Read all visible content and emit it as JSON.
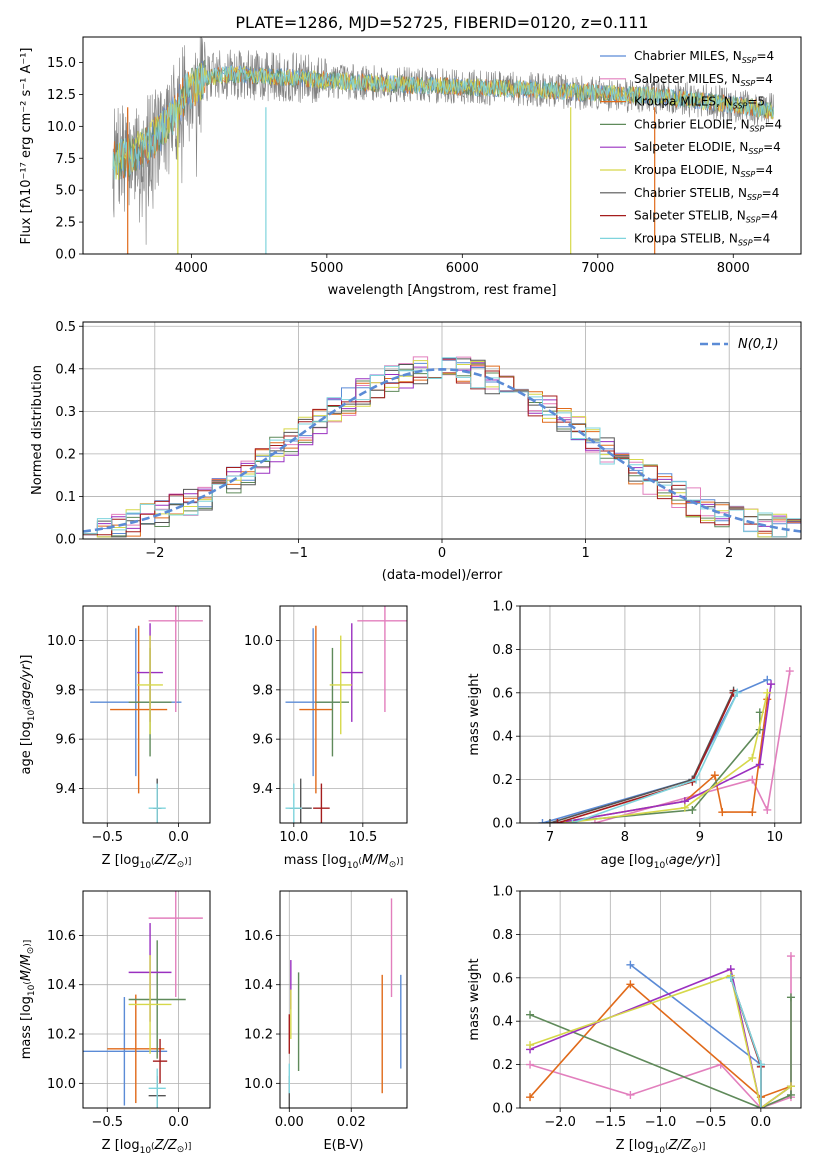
{
  "figure_title": "PLATE=1286, MJD=52725, FIBERID=0120, z=0.111",
  "colors": {
    "Chabrier MILES": "#5b8bd6",
    "Salpeter MILES": "#e27fbd",
    "Kroupa MILES": "#e06a1a",
    "Chabrier ELODIE": "#5f8a5a",
    "Salpeter ELODIE": "#9a30c0",
    "Kroupa ELODIE": "#d6d84a",
    "Chabrier STELIB": "#555555",
    "Salpeter STELIB": "#a51d1d",
    "Kroupa STELIB": "#7fd4dd",
    "gaussian": "#5b8bd6",
    "grid": "#b0b0b0",
    "data_gray": "#808080"
  },
  "chart_data": [
    {
      "id": "spectrum",
      "type": "line",
      "title": "PLATE=1286, MJD=52725, FIBERID=0120, z=0.111",
      "xlabel": "wavelength [Angstrom, rest frame]",
      "ylabel": "Flux [f_λ 10^-17 erg cm^-2 s^-1 A^-1]",
      "xlim": [
        3200,
        8500
      ],
      "ylim": [
        0,
        17
      ],
      "xticks": [
        4000,
        5000,
        6000,
        7000,
        8000
      ],
      "yticks": [
        0.0,
        2.5,
        5.0,
        7.5,
        10.0,
        12.5,
        15.0
      ],
      "ytick_labels": [
        "0.0",
        "2.5",
        "5.0",
        "7.5",
        "10.0",
        "12.5",
        "15.0"
      ],
      "grid": false,
      "legend": "right",
      "legend_entries": [
        {
          "label": "Chabrier MILES, N",
          "sub": "SSP",
          "tail": "=4",
          "key": "Chabrier MILES"
        },
        {
          "label": "Salpeter MILES, N",
          "sub": "SSP",
          "tail": "=4",
          "key": "Salpeter MILES"
        },
        {
          "label": "Kroupa MILES, N",
          "sub": "SSP",
          "tail": "=5",
          "key": "Kroupa MILES"
        },
        {
          "label": "Chabrier ELODIE, N",
          "sub": "SSP",
          "tail": "=4",
          "key": "Chabrier ELODIE"
        },
        {
          "label": "Salpeter ELODIE, N",
          "sub": "SSP",
          "tail": "=4",
          "key": "Salpeter ELODIE"
        },
        {
          "label": "Kroupa ELODIE, N",
          "sub": "SSP",
          "tail": "=4",
          "key": "Kroupa ELODIE"
        },
        {
          "label": "Chabrier STELIB, N",
          "sub": "SSP",
          "tail": "=4",
          "key": "Chabrier STELIB"
        },
        {
          "label": "Salpeter STELIB, N",
          "sub": "SSP",
          "tail": "=4",
          "key": "Salpeter STELIB"
        },
        {
          "label": "Kroupa STELIB, N",
          "sub": "SSP",
          "tail": "=4",
          "key": "Kroupa STELIB"
        }
      ],
      "continuum_x": [
        3420,
        3550,
        3700,
        3850,
        3950,
        4100,
        4300,
        4600,
        5000,
        5500,
        6000,
        6500,
        7000,
        7500,
        8000,
        8300
      ],
      "continuum_y": [
        7.3,
        7.6,
        8.8,
        10.5,
        12.5,
        13.8,
        14.1,
        13.9,
        13.6,
        13.3,
        13.1,
        12.9,
        12.6,
        12.3,
        11.7,
        11.2
      ]
    },
    {
      "id": "residuals",
      "type": "histogram",
      "xlabel": "(data-model)/error",
      "ylabel": "Normed distribution",
      "xlim": [
        -2.5,
        2.5
      ],
      "ylim": [
        0,
        0.51
      ],
      "xticks": [
        -2,
        -1,
        0,
        1,
        2
      ],
      "xtick_labels": [
        "−2",
        "−1",
        "0",
        "1",
        "2"
      ],
      "yticks": [
        0.0,
        0.1,
        0.2,
        0.3,
        0.4,
        0.5
      ],
      "ytick_labels": [
        "0.0",
        "0.1",
        "0.2",
        "0.3",
        "0.4",
        "0.5"
      ],
      "grid": true,
      "legend": "top-right",
      "gaussian_label": "N(0,1)",
      "bin_width": 0.1
    },
    {
      "id": "age_vs_Z",
      "type": "errorbar",
      "xlabel": "Z [log10(Z/Z⊙)]",
      "ylabel": "age [log10(age/yr)]",
      "xlim": [
        -0.67,
        0.22
      ],
      "ylim": [
        9.26,
        10.14
      ],
      "xticks": [
        -0.5,
        0.0
      ],
      "xtick_labels": [
        "−0.5",
        "0.0"
      ],
      "yticks": [
        9.4,
        9.6,
        9.8,
        10.0
      ],
      "ytick_labels": [
        "9.4",
        "9.6",
        "9.8",
        "10.0"
      ],
      "grid": true,
      "points": [
        {
          "key": "Chabrier MILES",
          "x": -0.3,
          "xerr": 0.32,
          "y": 9.75,
          "yerr": 0.3
        },
        {
          "key": "Salpeter MILES",
          "x": -0.02,
          "xerr": 0.19,
          "y": 10.08,
          "yerr": 0.37
        },
        {
          "key": "Kroupa MILES",
          "x": -0.28,
          "xerr": 0.2,
          "y": 9.72,
          "yerr": 0.34
        },
        {
          "key": "Chabrier ELODIE",
          "x": -0.2,
          "xerr": 0.15,
          "y": 9.75,
          "yerr": 0.22
        },
        {
          "key": "Salpeter ELODIE",
          "x": -0.2,
          "xerr": 0.09,
          "y": 9.87,
          "yerr": 0.2
        },
        {
          "key": "Kroupa ELODIE",
          "x": -0.2,
          "xerr": 0.09,
          "y": 9.82,
          "yerr": 0.2
        },
        {
          "key": "Chabrier STELIB",
          "x": -0.15,
          "xerr": 0.03,
          "y": 9.32,
          "yerr": 0.12
        },
        {
          "key": "Salpeter STELIB",
          "x": -0.15,
          "xerr": 0.02,
          "y": 9.32,
          "yerr": 0.1
        },
        {
          "key": "Kroupa STELIB",
          "x": -0.15,
          "xerr": 0.06,
          "y": 9.32,
          "yerr": 0.1
        }
      ]
    },
    {
      "id": "age_vs_mass",
      "type": "errorbar",
      "xlabel": "mass [log10(M/M⊙)]",
      "ylabel": "",
      "xlim": [
        9.9,
        10.82
      ],
      "ylim": [
        9.26,
        10.14
      ],
      "xticks": [
        10.0,
        10.5
      ],
      "xtick_labels": [
        "10.0",
        "10.5"
      ],
      "yticks": [
        9.4,
        9.6,
        9.8,
        10.0
      ],
      "ytick_labels": [
        "9.4",
        "9.6",
        "9.8",
        "10.0"
      ],
      "grid": true,
      "points": [
        {
          "key": "Chabrier MILES",
          "x": 10.14,
          "xerr": 0.2,
          "y": 9.75,
          "yerr": 0.3
        },
        {
          "key": "Salpeter MILES",
          "x": 10.66,
          "xerr": 0.2,
          "y": 10.08,
          "yerr": 0.37
        },
        {
          "key": "Kroupa MILES",
          "x": 10.16,
          "xerr": 0.12,
          "y": 9.72,
          "yerr": 0.34
        },
        {
          "key": "Chabrier ELODIE",
          "x": 10.28,
          "xerr": 0.12,
          "y": 9.75,
          "yerr": 0.22
        },
        {
          "key": "Salpeter ELODIE",
          "x": 10.42,
          "xerr": 0.08,
          "y": 9.87,
          "yerr": 0.2
        },
        {
          "key": "Kroupa ELODIE",
          "x": 10.34,
          "xerr": 0.08,
          "y": 9.82,
          "yerr": 0.2
        },
        {
          "key": "Chabrier STELIB",
          "x": 10.05,
          "xerr": 0.08,
          "y": 9.32,
          "yerr": 0.12
        },
        {
          "key": "Salpeter STELIB",
          "x": 10.2,
          "xerr": 0.06,
          "y": 9.32,
          "yerr": 0.1
        },
        {
          "key": "Kroupa STELIB",
          "x": 10.0,
          "xerr": 0.06,
          "y": 9.32,
          "yerr": 0.1
        }
      ]
    },
    {
      "id": "weight_vs_age",
      "type": "line",
      "xlabel": "age [log10(age/yr)]",
      "ylabel": "mass weight",
      "xlim": [
        6.6,
        10.35
      ],
      "ylim": [
        0,
        1.0
      ],
      "xticks": [
        7,
        8,
        9,
        10
      ],
      "xtick_labels": [
        "7",
        "8",
        "9",
        "10"
      ],
      "yticks": [
        0.0,
        0.2,
        0.4,
        0.6,
        0.8,
        1.0
      ],
      "ytick_labels": [
        "0.0",
        "0.2",
        "0.4",
        "0.6",
        "0.8",
        "1.0"
      ],
      "grid": true,
      "series": [
        {
          "key": "Chabrier MILES",
          "x": [
            6.9,
            8.9,
            9.5,
            9.9
          ],
          "y": [
            0.0,
            0.2,
            0.6,
            0.66
          ]
        },
        {
          "key": "Salpeter MILES",
          "x": [
            7.6,
            9.7,
            9.9,
            10.2
          ],
          "y": [
            0.0,
            0.2,
            0.06,
            0.7
          ]
        },
        {
          "key": "Kroupa MILES",
          "x": [
            7.1,
            8.8,
            9.2,
            9.3,
            9.7,
            9.9
          ],
          "y": [
            0.0,
            0.1,
            0.22,
            0.05,
            0.05,
            0.57
          ]
        },
        {
          "key": "Chabrier ELODIE",
          "x": [
            7.0,
            8.9,
            9.8,
            9.8
          ],
          "y": [
            0.0,
            0.06,
            0.43,
            0.51
          ]
        },
        {
          "key": "Salpeter ELODIE",
          "x": [
            7.1,
            8.8,
            9.8,
            9.95
          ],
          "y": [
            0.0,
            0.1,
            0.27,
            0.64
          ]
        },
        {
          "key": "Kroupa ELODIE",
          "x": [
            7.2,
            8.8,
            9.7,
            9.9
          ],
          "y": [
            0.0,
            0.07,
            0.3,
            0.6
          ]
        },
        {
          "key": "Chabrier STELIB",
          "x": [
            7.0,
            8.9,
            9.45
          ],
          "y": [
            0.0,
            0.2,
            0.61
          ]
        },
        {
          "key": "Salpeter STELIB",
          "x": [
            7.1,
            8.9,
            9.45
          ],
          "y": [
            0.0,
            0.19,
            0.6
          ]
        },
        {
          "key": "Kroupa STELIB",
          "x": [
            7.3,
            8.95,
            9.5
          ],
          "y": [
            0.0,
            0.2,
            0.6
          ]
        }
      ]
    },
    {
      "id": "mass_vs_Z",
      "type": "errorbar",
      "xlabel": "Z [log10(Z/Z⊙)]",
      "ylabel": "mass [log10(M/M⊙)]",
      "xlim": [
        -0.67,
        0.22
      ],
      "ylim": [
        9.9,
        10.78
      ],
      "xticks": [
        -0.5,
        0.0
      ],
      "xtick_labels": [
        "−0.5",
        "0.0"
      ],
      "yticks": [
        10.0,
        10.2,
        10.4,
        10.6
      ],
      "ytick_labels": [
        "10.0",
        "10.2",
        "10.4",
        "10.6"
      ],
      "grid": true,
      "points": [
        {
          "key": "Chabrier MILES",
          "x": -0.38,
          "xerr": 0.3,
          "y": 10.13,
          "yerr": 0.22
        },
        {
          "key": "Salpeter MILES",
          "x": -0.02,
          "xerr": 0.19,
          "y": 10.67,
          "yerr": 0.32
        },
        {
          "key": "Kroupa MILES",
          "x": -0.3,
          "xerr": 0.2,
          "y": 10.14,
          "yerr": 0.22
        },
        {
          "key": "Chabrier ELODIE",
          "x": -0.15,
          "xerr": 0.2,
          "y": 10.34,
          "yerr": 0.24
        },
        {
          "key": "Salpeter ELODIE",
          "x": -0.2,
          "xerr": 0.15,
          "y": 10.45,
          "yerr": 0.2
        },
        {
          "key": "Kroupa ELODIE",
          "x": -0.2,
          "xerr": 0.15,
          "y": 10.32,
          "yerr": 0.2
        },
        {
          "key": "Chabrier STELIB",
          "x": -0.15,
          "xerr": 0.06,
          "y": 9.95,
          "yerr": 0.08
        },
        {
          "key": "Salpeter STELIB",
          "x": -0.13,
          "xerr": 0.05,
          "y": 10.09,
          "yerr": 0.09
        },
        {
          "key": "Kroupa STELIB",
          "x": -0.15,
          "xerr": 0.06,
          "y": 9.98,
          "yerr": 0.08
        }
      ]
    },
    {
      "id": "mass_vs_ebv",
      "type": "errorbar",
      "xlabel": "E(B-V)",
      "ylabel": "",
      "xlim": [
        -0.003,
        0.038
      ],
      "ylim": [
        9.9,
        10.78
      ],
      "xticks": [
        0.0,
        0.02
      ],
      "xtick_labels": [
        "0.00",
        "0.02"
      ],
      "yticks": [
        10.0,
        10.2,
        10.4,
        10.6
      ],
      "ytick_labels": [
        "10.0",
        "10.2",
        "10.4",
        "10.6"
      ],
      "grid": true,
      "points": [
        {
          "key": "Chabrier MILES",
          "x": 0.036,
          "xerr": 0.0,
          "y": 10.25,
          "yerr": 0.19
        },
        {
          "key": "Salpeter MILES",
          "x": 0.033,
          "xerr": 0.0,
          "y": 10.55,
          "yerr": 0.2
        },
        {
          "key": "Kroupa MILES",
          "x": 0.03,
          "xerr": 0.0,
          "y": 10.2,
          "yerr": 0.24
        },
        {
          "key": "Chabrier ELODIE",
          "x": 0.003,
          "xerr": 0.0,
          "y": 10.25,
          "yerr": 0.2
        },
        {
          "key": "Salpeter ELODIE",
          "x": 0.0005,
          "xerr": 0.0,
          "y": 10.4,
          "yerr": 0.1
        },
        {
          "key": "Kroupa ELODIE",
          "x": 0.0005,
          "xerr": 0.0,
          "y": 10.28,
          "yerr": 0.1
        },
        {
          "key": "Chabrier STELIB",
          "x": 0.0,
          "xerr": 0.0,
          "y": 9.95,
          "yerr": 0.08
        },
        {
          "key": "Salpeter STELIB",
          "x": 0.0,
          "xerr": 0.0,
          "y": 10.2,
          "yerr": 0.08
        },
        {
          "key": "Kroupa STELIB",
          "x": 0.0,
          "xerr": 0.0,
          "y": 10.02,
          "yerr": 0.06
        }
      ]
    },
    {
      "id": "weight_vs_Z",
      "type": "line",
      "xlabel": "Z [log10(Z/Z⊙)]",
      "ylabel": "mass weight",
      "xlim": [
        -2.4,
        0.4
      ],
      "ylim": [
        0,
        1.0
      ],
      "xticks": [
        -2.0,
        -1.5,
        -1.0,
        -0.5,
        0.0
      ],
      "xtick_labels": [
        "−2.0",
        "−1.5",
        "−1.0",
        "−0.5",
        "0.0"
      ],
      "yticks": [
        0.0,
        0.2,
        0.4,
        0.6,
        0.8,
        1.0
      ],
      "ytick_labels": [
        "0.0",
        "0.2",
        "0.4",
        "0.6",
        "0.8",
        "1.0"
      ],
      "grid": true,
      "series": [
        {
          "key": "Chabrier MILES",
          "x": [
            -1.3,
            0.0,
            0.0,
            0.3
          ],
          "y": [
            0.66,
            0.2,
            0.0,
            0.1
          ]
        },
        {
          "key": "Salpeter MILES",
          "x": [
            -2.3,
            -1.3,
            -0.4,
            0.0,
            0.3,
            0.3
          ],
          "y": [
            0.2,
            0.06,
            0.2,
            0.0,
            0.05,
            0.7
          ]
        },
        {
          "key": "Kroupa MILES",
          "x": [
            -2.3,
            -1.3,
            0.0,
            0.3
          ],
          "y": [
            0.05,
            0.57,
            0.05,
            0.1
          ]
        },
        {
          "key": "Chabrier ELODIE",
          "x": [
            -2.3,
            0.0,
            0.3,
            0.3
          ],
          "y": [
            0.43,
            0.0,
            0.06,
            0.51
          ]
        },
        {
          "key": "Salpeter ELODIE",
          "x": [
            -2.3,
            -0.3,
            0.0,
            0.3
          ],
          "y": [
            0.27,
            0.64,
            0.0,
            0.1
          ]
        },
        {
          "key": "Kroupa ELODIE",
          "x": [
            -2.3,
            -0.3,
            0.0,
            0.3
          ],
          "y": [
            0.29,
            0.61,
            0.0,
            0.1
          ]
        },
        {
          "key": "Chabrier STELIB",
          "x": [
            -0.3,
            0.0,
            0.0
          ],
          "y": [
            0.6,
            0.2,
            0.0
          ]
        },
        {
          "key": "Salpeter STELIB",
          "x": [
            -0.3,
            0.0,
            0.0
          ],
          "y": [
            0.6,
            0.19,
            0.0
          ]
        },
        {
          "key": "Kroupa STELIB",
          "x": [
            -0.3,
            0.0,
            0.0
          ],
          "y": [
            0.6,
            0.2,
            0.0
          ]
        }
      ]
    }
  ]
}
